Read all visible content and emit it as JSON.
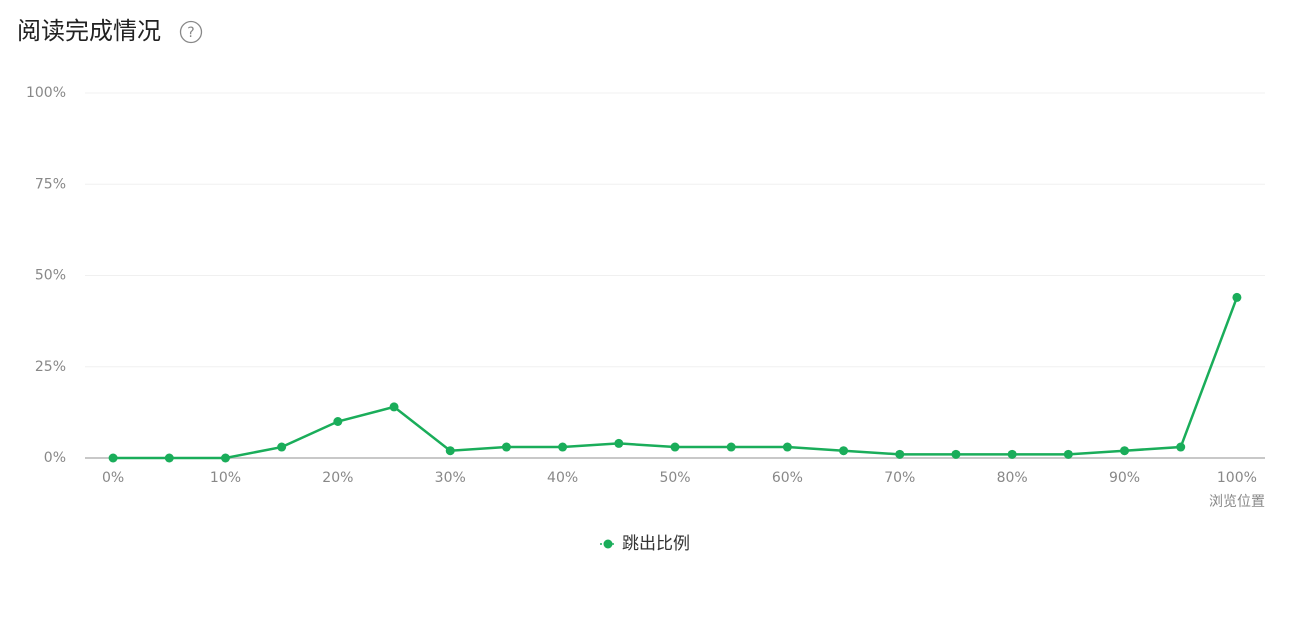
{
  "chart_data": {
    "type": "line",
    "title": "阅读完成情况",
    "help_icon": "?",
    "x_label": "浏览位置",
    "categories": [
      "0%",
      null,
      "10%",
      null,
      "20%",
      null,
      "30%",
      null,
      "40%",
      null,
      "50%",
      null,
      "60%",
      null,
      "70%",
      null,
      "80%",
      null,
      "90%",
      null,
      "100%"
    ],
    "series": [
      {
        "name": "跳出比例",
        "color": "#1aad5a",
        "values": [
          0,
          0,
          0,
          3,
          10,
          14,
          2,
          3,
          3,
          4,
          3,
          3,
          3,
          2,
          1,
          1,
          1,
          1,
          2,
          3,
          44
        ]
      }
    ],
    "ylim": [
      0,
      100
    ],
    "yticks": [
      {
        "value": 0,
        "label": "0%"
      },
      {
        "value": 25,
        "label": "25%"
      },
      {
        "value": 50,
        "label": "50%"
      },
      {
        "value": 75,
        "label": "75%"
      },
      {
        "value": 100,
        "label": "100%"
      }
    ],
    "grid": true,
    "legend": "bottom"
  }
}
